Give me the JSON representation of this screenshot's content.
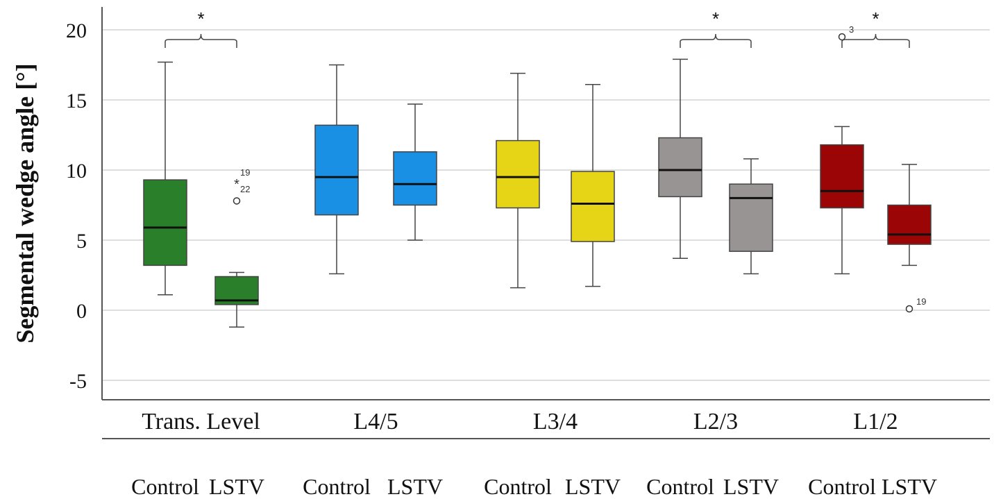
{
  "chart_data": {
    "type": "box",
    "ylabel": "Segmental wedge angle [°]",
    "ylim": [
      -6.5,
      21.5
    ],
    "yticks": [
      -5,
      0,
      5,
      10,
      15,
      20
    ],
    "grid": true,
    "groups": [
      "Trans. Level",
      "L4/5",
      "L3/4",
      "L2/3",
      "L1/2"
    ],
    "subcategories": [
      "Control",
      "LSTV"
    ],
    "colors": {
      "Trans. Level": "#2a7f2a",
      "L4/5": "#1a90e5",
      "L3/4": "#e6d516",
      "L2/3": "#989494",
      "L1/2": "#9b0505"
    },
    "boxes": [
      {
        "group": "Trans. Level",
        "category": "Control",
        "min": 1.1,
        "q1": 3.2,
        "median": 5.9,
        "q3": 9.3,
        "max": 17.7,
        "outliers": []
      },
      {
        "group": "Trans. Level",
        "category": "LSTV",
        "min": -1.2,
        "q1": 0.4,
        "median": 0.7,
        "q3": 2.4,
        "max": 2.7,
        "outliers": [
          {
            "value": 7.8,
            "symbol": "circle",
            "label": ""
          },
          {
            "value": 9.0,
            "symbol": "star",
            "label": "19"
          },
          {
            "value": 9.0,
            "symbol": "none",
            "label": "22"
          }
        ]
      },
      {
        "group": "L4/5",
        "category": "Control",
        "min": 2.6,
        "q1": 6.8,
        "median": 9.5,
        "q3": 13.2,
        "max": 17.5,
        "outliers": []
      },
      {
        "group": "L4/5",
        "category": "LSTV",
        "min": 5.0,
        "q1": 7.5,
        "median": 9.0,
        "q3": 11.3,
        "max": 14.7,
        "outliers": []
      },
      {
        "group": "L3/4",
        "category": "Control",
        "min": 1.6,
        "q1": 7.3,
        "median": 9.5,
        "q3": 12.1,
        "max": 16.9,
        "outliers": []
      },
      {
        "group": "L3/4",
        "category": "LSTV",
        "min": 1.7,
        "q1": 4.9,
        "median": 7.6,
        "q3": 9.9,
        "max": 16.1,
        "outliers": []
      },
      {
        "group": "L2/3",
        "category": "Control",
        "min": 3.7,
        "q1": 8.1,
        "median": 10.0,
        "q3": 12.3,
        "max": 17.9,
        "outliers": []
      },
      {
        "group": "L2/3",
        "category": "LSTV",
        "min": 2.6,
        "q1": 4.2,
        "median": 8.0,
        "q3": 9.0,
        "max": 10.8,
        "outliers": []
      },
      {
        "group": "L1/2",
        "category": "Control",
        "min": 2.6,
        "q1": 7.3,
        "median": 8.5,
        "q3": 11.8,
        "max": 13.1,
        "outliers": [
          {
            "value": 19.5,
            "symbol": "circle",
            "label": "3"
          }
        ]
      },
      {
        "group": "L1/2",
        "category": "LSTV",
        "min": 3.2,
        "q1": 4.7,
        "median": 5.4,
        "q3": 7.5,
        "max": 10.4,
        "outliers": [
          {
            "value": 0.1,
            "symbol": "circle",
            "label": "19"
          }
        ]
      }
    ],
    "significance": [
      {
        "group": "Trans. Level",
        "marker": "*"
      },
      {
        "group": "L2/3",
        "marker": "*"
      },
      {
        "group": "L1/2",
        "marker": "*"
      }
    ]
  }
}
